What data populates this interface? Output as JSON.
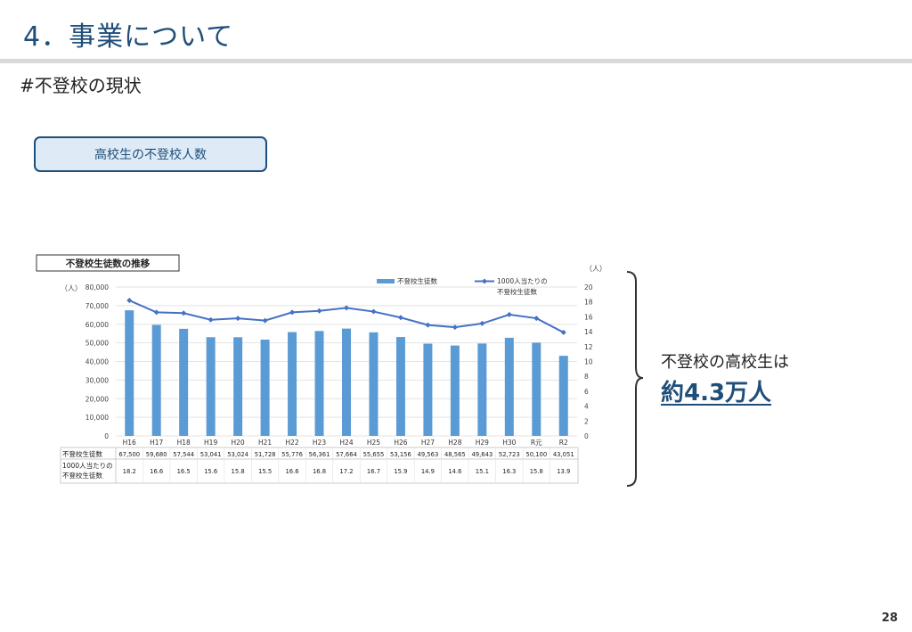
{
  "slide": {
    "title": "4．事業について",
    "section": "#不登校の現状",
    "pill": "高校生の不登校人数",
    "page_number": "28"
  },
  "callout": {
    "line1": "不登校の高校生は",
    "line2": "約4.3万人"
  },
  "colors": {
    "bar": "#5b9bd5",
    "line": "#4472c4",
    "title": "#1f4e79"
  },
  "chart_data": {
    "type": "bar",
    "title": "不登校生徒数の推移",
    "categories": [
      "H16",
      "H17",
      "H18",
      "H19",
      "H20",
      "H21",
      "H22",
      "H23",
      "H24",
      "H25",
      "H26",
      "H27",
      "H28",
      "H29",
      "H30",
      "R元",
      "R2"
    ],
    "left_unit": "（人）",
    "right_unit": "（人）",
    "ylim": [
      0,
      80000
    ],
    "y_ticks": [
      "80,000",
      "70,000",
      "60,000",
      "50,000",
      "40,000",
      "30,000",
      "20,000",
      "10,000",
      "0"
    ],
    "y2lim": [
      0,
      20
    ],
    "y2_ticks": [
      "20",
      "18",
      "16",
      "14",
      "12",
      "10",
      "8",
      "6",
      "4",
      "2",
      "0"
    ],
    "legend_placement": "top-center",
    "grid": true,
    "series": [
      {
        "name": "不登校生徒数",
        "kind": "bar",
        "axis": "left",
        "values": [
          67500,
          59680,
          57544,
          53041,
          53024,
          51728,
          55776,
          56361,
          57664,
          55655,
          53156,
          49563,
          48565,
          49643,
          52723,
          50100,
          43051
        ],
        "labels": [
          "67,500",
          "59,680",
          "57,544",
          "53,041",
          "53,024",
          "51,728",
          "55,776",
          "56,361",
          "57,664",
          "55,655",
          "53,156",
          "49,563",
          "48,565",
          "49,643",
          "52,723",
          "50,100",
          "43,051"
        ]
      },
      {
        "name": "1000人当たりの不登校生徒数",
        "name_lines": [
          "1000人当たりの",
          "不登校生徒数"
        ],
        "kind": "line",
        "axis": "right",
        "values": [
          18.2,
          16.6,
          16.5,
          15.6,
          15.8,
          15.5,
          16.6,
          16.8,
          17.2,
          16.7,
          15.9,
          14.9,
          14.6,
          15.1,
          16.3,
          15.8,
          13.9
        ],
        "labels": [
          "18.2",
          "16.6",
          "16.5",
          "15.6",
          "15.8",
          "15.5",
          "16.6",
          "16.8",
          "17.2",
          "16.7",
          "15.9",
          "14.9",
          "14.6",
          "15.1",
          "16.3",
          "15.8",
          "13.9"
        ]
      }
    ],
    "table_rows": [
      {
        "label_lines": [
          "不登校生徒数"
        ]
      },
      {
        "label_lines": [
          "1000人当たりの",
          "不登校生徒数"
        ]
      }
    ]
  }
}
